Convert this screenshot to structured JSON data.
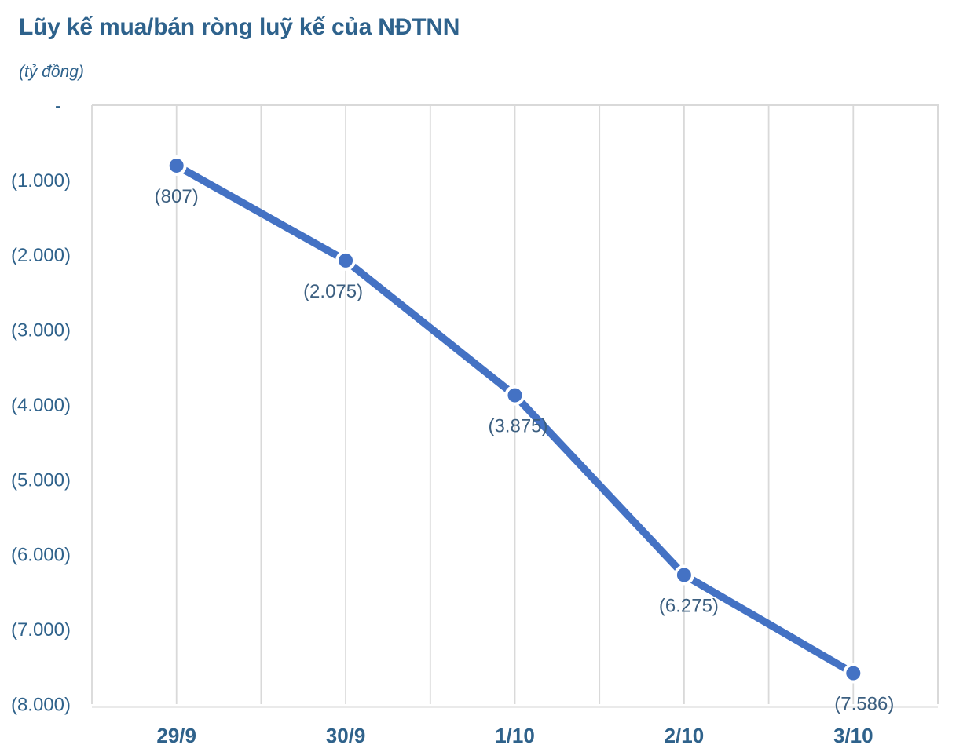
{
  "header": {
    "title": "Lũy kế mua/bán ròng luỹ kế của NĐTNN",
    "subtitle": "(tỷ đồng)"
  },
  "chart_data": {
    "type": "line",
    "title": "Lũy kế mua/bán ròng luỹ kế của NĐTNN",
    "subtitle": "(tỷ đồng)",
    "unit": "tỷ đồng",
    "categories": [
      "29/9",
      "30/9",
      "1/10",
      "2/10",
      "3/10"
    ],
    "series": [
      {
        "name": "Lũy kế mua/bán ròng của NĐTNN",
        "values": [
          -807,
          -2075,
          -3875,
          -6275,
          -7586
        ]
      }
    ],
    "data_labels": [
      "(807)",
      "(2.075)",
      "(3.875)",
      "(6.275)",
      "(7.586)"
    ],
    "y_ticks": [
      "-",
      "(1.000)",
      "(2.000)",
      "(3.000)",
      "(4.000)",
      "(5.000)",
      "(6.000)",
      "(7.000)",
      "(8.000)"
    ],
    "y_tick_values": [
      0,
      -1000,
      -2000,
      -3000,
      -4000,
      -5000,
      -6000,
      -7000,
      -8000
    ],
    "ylim": [
      -8000,
      0
    ],
    "grid": "vertical-only",
    "legend": "none",
    "marker": "circle",
    "colors": {
      "line": "#4472C4",
      "marker": "#4472C4",
      "marker_halo": "#FFFFFF",
      "grid": "#D9D9D9",
      "axis_line": "#E3E3E3",
      "title_text": "#2E628C",
      "axis_text": "#2F628B",
      "data_label_text": "#3C5F80"
    }
  }
}
